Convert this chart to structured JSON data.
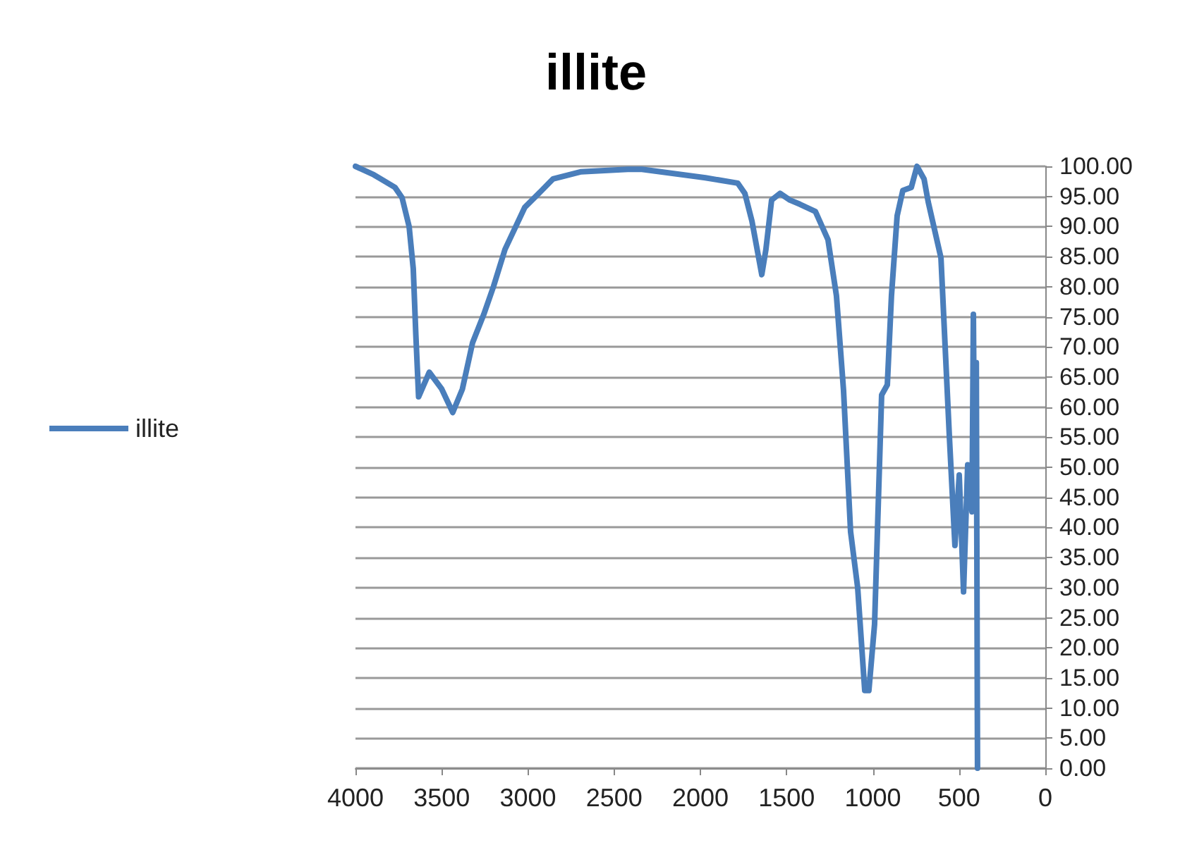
{
  "chart_data": {
    "type": "line",
    "title": "illite",
    "legend": "left",
    "grid": "y",
    "marker": "none",
    "line_style": "solid",
    "xlim": [
      4000,
      0
    ],
    "xticks": [
      4000,
      3500,
      3000,
      2500,
      2000,
      1500,
      1000,
      500,
      0
    ],
    "ylim": [
      0,
      100
    ],
    "yticks": [
      {
        "value": 0,
        "label": "0.00"
      },
      {
        "value": 5,
        "label": "5.00"
      },
      {
        "value": 10,
        "label": "10.00"
      },
      {
        "value": 15,
        "label": "15.00"
      },
      {
        "value": 20,
        "label": "20.00"
      },
      {
        "value": 25,
        "label": "25.00"
      },
      {
        "value": 30,
        "label": "30.00"
      },
      {
        "value": 35,
        "label": "35.00"
      },
      {
        "value": 40,
        "label": "40.00"
      },
      {
        "value": 45,
        "label": "45.00"
      },
      {
        "value": 50,
        "label": "50.00"
      },
      {
        "value": 55,
        "label": "55.00"
      },
      {
        "value": 60,
        "label": "60.00"
      },
      {
        "value": 65,
        "label": "65.00"
      },
      {
        "value": 70,
        "label": "70.00"
      },
      {
        "value": 75,
        "label": "75.00"
      },
      {
        "value": 80,
        "label": "80.00"
      },
      {
        "value": 85,
        "label": "85.00"
      },
      {
        "value": 90,
        "label": "90.00"
      },
      {
        "value": 95,
        "label": "95.00"
      },
      {
        "value": 100,
        "label": "100.00"
      }
    ],
    "series": [
      {
        "name": "illite",
        "color": "#4a7ebb",
        "x": [
          4000,
          3894,
          3771,
          3730,
          3689,
          3665,
          3650,
          3634,
          3572,
          3500,
          3436,
          3380,
          3321,
          3256,
          3200,
          3133,
          3018,
          2937,
          2855,
          2691,
          2421,
          2339,
          1971,
          1783,
          1742,
          1701,
          1644,
          1620,
          1587,
          1538,
          1481,
          1423,
          1333,
          1260,
          1211,
          1170,
          1129,
          1088,
          1047,
          1023,
          990,
          949,
          916,
          892,
          859,
          826,
          777,
          744,
          703,
          679,
          605,
          556,
          524,
          499,
          474,
          450,
          425,
          417,
          409,
          400,
          393
        ],
        "values": [
          100,
          98.6,
          96.5,
          94.8,
          90,
          83,
          72,
          61.7,
          65.8,
          63,
          59.1,
          63,
          70.7,
          75.4,
          80,
          86.2,
          93.2,
          95.5,
          97.9,
          99.1,
          99.5,
          99.5,
          98.1,
          97.2,
          95.5,
          90.9,
          82,
          86.2,
          94.4,
          95.5,
          94.4,
          93.7,
          92.5,
          87.8,
          78.5,
          62.8,
          39.3,
          30,
          12.9,
          12.9,
          23.9,
          62,
          63.7,
          78.5,
          91.8,
          96,
          96.5,
          100,
          97.9,
          94.1,
          84.8,
          55,
          37,
          48.7,
          29.3,
          50.4,
          42.6,
          75.4,
          43.3,
          67.4,
          0
        ]
      }
    ]
  }
}
